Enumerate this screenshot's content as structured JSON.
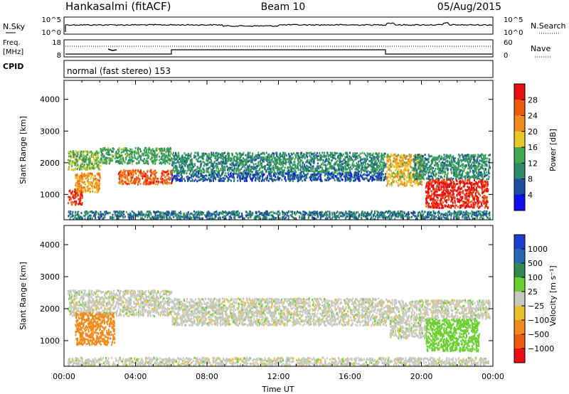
{
  "header": {
    "station": "Hankasalmi (fitACF)",
    "beam": "Beam 10",
    "date": "05/Aug/2015"
  },
  "strip_nsky": {
    "label": "N.Sky",
    "ticks_left": [
      "10^5",
      "10^0"
    ],
    "ticks_right": [
      "10^5",
      "10^0"
    ],
    "right_label": "N.Search"
  },
  "strip_freq": {
    "label_top": "Freq.",
    "label_units": "[MHz]",
    "ticks_left": [
      "18",
      "8"
    ],
    "ticks_right": [
      "60",
      "0"
    ],
    "right_label": "Nave"
  },
  "strip_cpid": {
    "label": "CPID",
    "text": "normal (fast stereo) 153"
  },
  "x_axis": {
    "ticks": [
      "00:00",
      "04:00",
      "08:00",
      "12:00",
      "16:00",
      "20:00",
      "00:00"
    ],
    "label": "Time UT"
  },
  "power_panel": {
    "ylabel": "Slant Range [km]",
    "yticks": [
      "1000",
      "2000",
      "3000",
      "4000"
    ],
    "cbar_label": "Power [dB]",
    "cbar_ticks": [
      "4",
      "8",
      "12",
      "16",
      "20",
      "24",
      "28"
    ],
    "cbar_colors": [
      "#1010ee",
      "#1f4ea0",
      "#2e8a6c",
      "#3faa50",
      "#e8c828",
      "#f08a1a",
      "#ee5a10",
      "#e81010"
    ]
  },
  "velocity_panel": {
    "ylabel": "Slant Range [km]",
    "yticks": [
      "1000",
      "2000",
      "3000",
      "4000"
    ],
    "cbar_label": "Velocity [m s⁻¹]",
    "cbar_ticks": [
      "1000",
      "500",
      "100",
      "25",
      "−25",
      "−100",
      "−500",
      "−1000"
    ],
    "cbar_colors": [
      "#1c3fd0",
      "#2868b0",
      "#2e8a50",
      "#6ad030",
      "#c8c8c0",
      "#e8c030",
      "#f08a1a",
      "#ee5a10",
      "#e81010"
    ]
  },
  "chart_data": [
    {
      "type": "heatmap",
      "title": "Hankasalmi (fitACF) Beam 10 05/Aug/2015",
      "xlabel": "Time UT",
      "ylabel": "Slant Range [km]",
      "xlim": [
        0,
        24
      ],
      "ylim": [
        200,
        4600
      ],
      "value_label": "Power [dB]",
      "scale": [
        0,
        30
      ],
      "regions": [
        {
          "t0": 0.2,
          "t1": 2.0,
          "r0": 1800,
          "r1": 2400,
          "value": 14
        },
        {
          "t0": 2.0,
          "t1": 6.0,
          "r0": 2000,
          "r1": 2500,
          "value": 12
        },
        {
          "t0": 0.2,
          "t1": 1.0,
          "r0": 700,
          "r1": 1200,
          "value": 26
        },
        {
          "t0": 0.6,
          "t1": 2.0,
          "r0": 1100,
          "r1": 1700,
          "value": 20
        },
        {
          "t0": 3.0,
          "t1": 6.0,
          "r0": 1350,
          "r1": 1800,
          "value": 24
        },
        {
          "t0": 6.0,
          "t1": 18.0,
          "r0": 1700,
          "r1": 2350,
          "value": 10
        },
        {
          "t0": 6.0,
          "t1": 18.0,
          "r0": 1450,
          "r1": 1700,
          "value": 6
        },
        {
          "t0": 18.0,
          "t1": 20.0,
          "r0": 1300,
          "r1": 2300,
          "value": 18
        },
        {
          "t0": 19.5,
          "t1": 23.8,
          "r0": 1500,
          "r1": 2300,
          "value": 10
        },
        {
          "t0": 20.2,
          "t1": 23.7,
          "r0": 600,
          "r1": 1500,
          "value": 28
        },
        {
          "t0": 0.2,
          "t1": 23.8,
          "r0": 250,
          "r1": 500,
          "value": 8
        }
      ]
    },
    {
      "type": "heatmap",
      "title": "",
      "xlabel": "Time UT",
      "ylabel": "Slant Range [km]",
      "xlim": [
        0,
        24
      ],
      "ylim": [
        200,
        4600
      ],
      "value_label": "Velocity [m s⁻¹]",
      "scale": [
        -1000,
        1000
      ],
      "regions": [
        {
          "t0": 0.2,
          "t1": 6.0,
          "r0": 1800,
          "r1": 2600,
          "value": 0
        },
        {
          "t0": 0.6,
          "t1": 2.8,
          "r0": 900,
          "r1": 1900,
          "value": -200
        },
        {
          "t0": 6.0,
          "t1": 18.0,
          "r0": 1500,
          "r1": 2350,
          "value": 0
        },
        {
          "t0": 18.0,
          "t1": 23.8,
          "r0": 1700,
          "r1": 2300,
          "value": 0
        },
        {
          "t0": 18.2,
          "t1": 20.3,
          "r0": 1100,
          "r1": 1700,
          "value": 0
        },
        {
          "t0": 20.2,
          "t1": 23.2,
          "r0": 700,
          "r1": 1700,
          "value": 60
        },
        {
          "t0": 0.2,
          "t1": 23.8,
          "r0": 250,
          "r1": 500,
          "value": 0
        }
      ]
    }
  ]
}
